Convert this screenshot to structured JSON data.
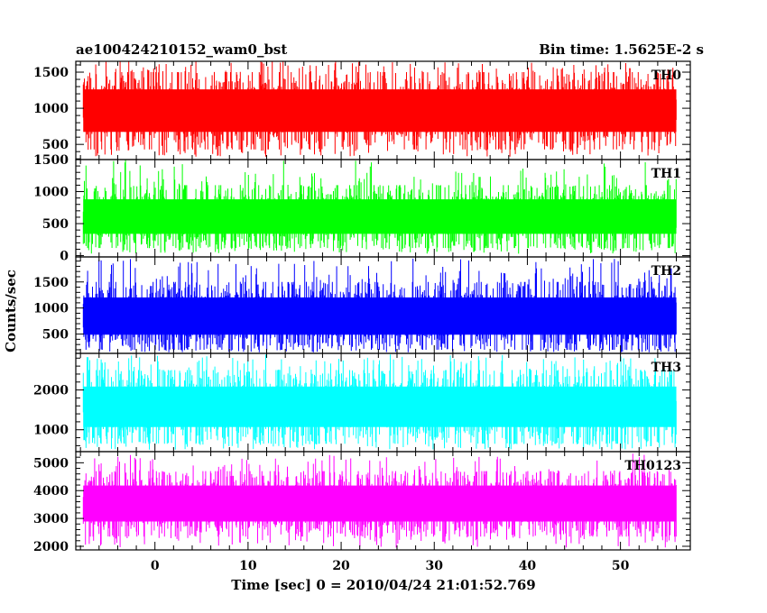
{
  "header": {
    "left_title": "ae100424210152_wam0_bst",
    "right_title": "Bin time: 1.5625E-2 s"
  },
  "chart_data": {
    "type": "line",
    "title": "ae100424210152_wam0_bst",
    "bin_time": "Bin time: 1.5625E-2 s",
    "xlabel": "Time [sec] 0 = 2010/04/24 21:01:52.769",
    "ylabel": "Counts/sec",
    "xlim": [
      -8.5,
      57.5
    ],
    "x_data_range": [
      -7.7,
      56.0
    ],
    "x_ticks": [
      0,
      10,
      20,
      30,
      40,
      50
    ],
    "x_tick_labels": [
      "0",
      "10",
      "20",
      "30",
      "40",
      "50"
    ],
    "grid": false,
    "panels": [
      {
        "name": "TH0",
        "color": "#ff0000",
        "ylim": [
          290,
          1650
        ],
        "y_ticks": [
          500,
          1000,
          1500
        ],
        "y_tick_labels": [
          "500",
          "1000",
          "1500"
        ],
        "typical_range": [
          430,
          1500
        ],
        "mean": 970,
        "min": 330,
        "max": 1650
      },
      {
        "name": "TH1",
        "color": "#00ff00",
        "ylim": [
          -20,
          1500
        ],
        "y_ticks": [
          0,
          500,
          1000,
          1500
        ],
        "y_tick_labels": [
          "0",
          "500",
          "1000",
          "1500"
        ],
        "typical_range": [
          120,
          1100
        ],
        "mean": 610,
        "min": 30,
        "max": 1500
      },
      {
        "name": "TH2",
        "color": "#0000ff",
        "ylim": [
          130,
          1980
        ],
        "y_ticks": [
          500,
          1000,
          1500
        ],
        "y_tick_labels": [
          "500",
          "1000",
          "1500"
        ],
        "typical_range": [
          200,
          1500
        ],
        "mean": 840,
        "min": 150,
        "max": 1950
      },
      {
        "name": "TH3",
        "color": "#00ffff",
        "ylim": [
          450,
          2920
        ],
        "y_ticks": [
          1000,
          2000
        ],
        "y_tick_labels": [
          "1000",
          "2000"
        ],
        "typical_range": [
          650,
          2500
        ],
        "mean": 1580,
        "min": 500,
        "max": 2900
      },
      {
        "name": "TH0123",
        "color": "#ff00ff",
        "ylim": [
          1870,
          5400
        ],
        "y_ticks": [
          2000,
          3000,
          4000,
          5000
        ],
        "y_tick_labels": [
          "2000",
          "3000",
          "4000",
          "5000"
        ],
        "typical_range": [
          2350,
          4700
        ],
        "mean": 3550,
        "min": 1950,
        "max": 5350
      }
    ]
  }
}
